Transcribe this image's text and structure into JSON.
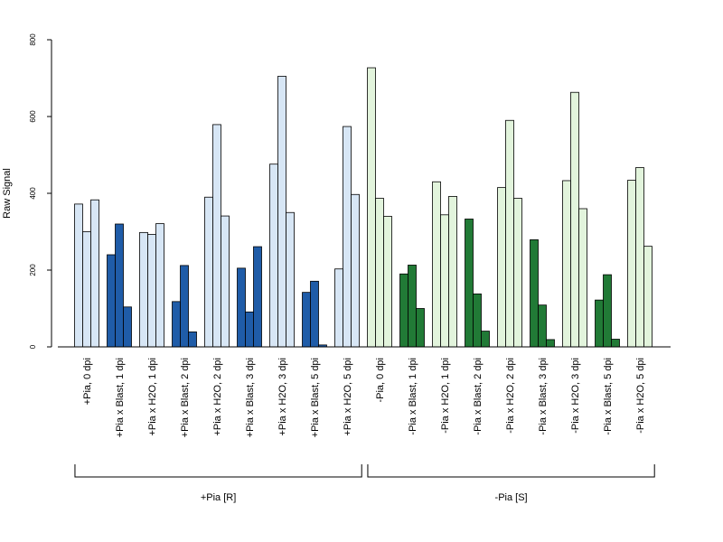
{
  "chart_data": {
    "type": "bar",
    "title": "",
    "xlabel": "",
    "ylabel": "Raw Signal",
    "ylim": [
      0,
      800
    ],
    "yticks": [
      0,
      200,
      400,
      600,
      800
    ],
    "grid": false,
    "legend": "none",
    "categories": [
      "+Pia, 0 dpi",
      "+Pia x Blast, 1 dpi",
      "+Pia x H2O, 1 dpi",
      "+Pia x Blast, 2 dpi",
      "+Pia x H2O, 2 dpi",
      "+Pia x Blast, 3 dpi",
      "+Pia x H2O, 3 dpi",
      "+Pia x Blast, 5 dpi",
      "+Pia x H2O, 5 dpi",
      "-Pia, 0 dpi",
      "-Pia x Blast, 1 dpi",
      "-Pia x H2O, 1 dpi",
      "-Pia x Blast, 2 dpi",
      "-Pia x H2O, 2 dpi",
      "-Pia x Blast, 3 dpi",
      "-Pia x H2O, 3 dpi",
      "-Pia x Blast, 5 dpi",
      "-Pia x H2O, 5 dpi"
    ],
    "replicate_values": [
      [
        372,
        300,
        383
      ],
      [
        240,
        320,
        104
      ],
      [
        298,
        293,
        321
      ],
      [
        118,
        212,
        39
      ],
      [
        390,
        579,
        341
      ],
      [
        205,
        91,
        261
      ],
      [
        476,
        705,
        350
      ],
      [
        142,
        171,
        5
      ],
      [
        203,
        574,
        397
      ],
      [
        727,
        387,
        340
      ],
      [
        190,
        213,
        100
      ],
      [
        430,
        344,
        392
      ],
      [
        333,
        138,
        41
      ],
      [
        415,
        590,
        387
      ],
      [
        279,
        109,
        19
      ],
      [
        433,
        663,
        360
      ],
      [
        122,
        188,
        20
      ],
      [
        434,
        467,
        262
      ]
    ],
    "bar_colors": [
      "#d7e6f5",
      "#1f5ca8",
      "#d7e6f5",
      "#1f5ca8",
      "#d7e6f5",
      "#1f5ca8",
      "#d7e6f5",
      "#1f5ca8",
      "#d7e6f5",
      "#e2f4dc",
      "#217a36",
      "#e2f4dc",
      "#217a36",
      "#e2f4dc",
      "#217a36",
      "#e2f4dc",
      "#217a36",
      "#e2f4dc"
    ],
    "groups": [
      {
        "label": "+Pia [R]",
        "from": 0,
        "to": 8
      },
      {
        "label": "-Pia [S]",
        "from": 9,
        "to": 17
      }
    ]
  }
}
